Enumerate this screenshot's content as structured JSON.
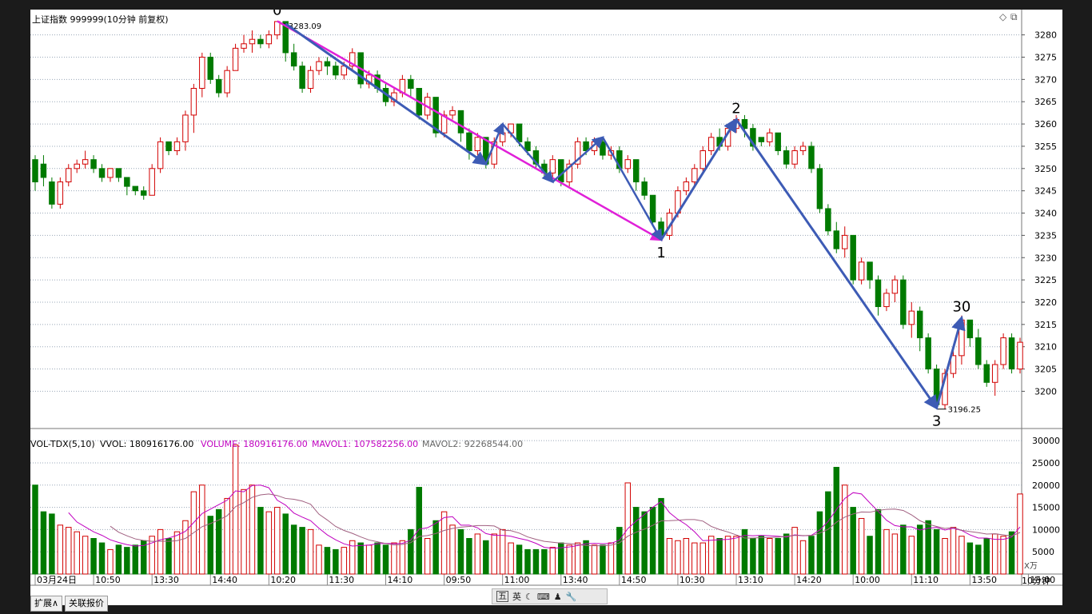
{
  "header": {
    "title": "上证指数 999999(10分钟 前复权)",
    "top_right_icons": [
      "diamond-icon",
      "window-restore-icon"
    ]
  },
  "volume_header": {
    "indicator": "VOL-TDX(5,10)",
    "vvol": "VVOL: 180916176.00",
    "volume": "VOLUME: 180916176.00",
    "mavol1": "MAVOL1: 107582256.00",
    "mavol2": "MAVOL2: 92268544.00"
  },
  "bottom_tabs": [
    "扩展∧",
    "关联报价"
  ],
  "toolbar": {
    "ime": "五",
    "lang": "英",
    "icons": [
      "moon-icon",
      "keyboard-icon",
      "user-icon",
      "wrench-icon"
    ]
  },
  "period_label": "10分钟",
  "colors": {
    "up": "#d20000",
    "down": "#007a00",
    "wave": "#3d5bb5",
    "trend": "#e020d8",
    "ma1": "#c000c0",
    "ma2": "#a06080",
    "grid": "#9aa8b8"
  },
  "chart_data": {
    "type": "candlestick",
    "price_axis": {
      "ticks": [
        3280,
        3275,
        3270,
        3265,
        3260,
        3255,
        3250,
        3245,
        3240,
        3235,
        3230,
        3225,
        3220,
        3215,
        3210,
        3205,
        3200
      ],
      "range": [
        3192.0,
        3284.6
      ]
    },
    "volume_axis": {
      "ticks": [
        30000,
        25000,
        20000,
        15000,
        10000,
        5000
      ],
      "unit": "X万",
      "range": [
        0,
        32000
      ]
    },
    "time_labels": [
      {
        "index": 0,
        "label": "03月24日"
      },
      {
        "index": 7,
        "label": "10:50"
      },
      {
        "index": 14,
        "label": "13:30"
      },
      {
        "index": 21,
        "label": "14:40"
      },
      {
        "index": 28,
        "label": "10:20"
      },
      {
        "index": 35,
        "label": "11:30"
      },
      {
        "index": 42,
        "label": "14:10"
      },
      {
        "index": 49,
        "label": "09:50"
      },
      {
        "index": 56,
        "label": "11:00"
      },
      {
        "index": 63,
        "label": "13:40"
      },
      {
        "index": 70,
        "label": "14:50"
      },
      {
        "index": 77,
        "label": "10:30"
      },
      {
        "index": 84,
        "label": "13:10"
      },
      {
        "index": 91,
        "label": "14:20"
      },
      {
        "index": 98,
        "label": "10:00"
      },
      {
        "index": 105,
        "label": "11:10"
      },
      {
        "index": 112,
        "label": "13:50"
      },
      {
        "index": 119,
        "label": "15:00"
      }
    ],
    "candles": [
      [
        3252,
        3247,
        3253,
        3245,
        20000
      ],
      [
        3251,
        3248,
        3253,
        3246,
        14000
      ],
      [
        3247,
        3242,
        3248,
        3241,
        13500
      ],
      [
        3242,
        3247,
        3248,
        3241,
        11000
      ],
      [
        3247,
        3250,
        3251,
        3246,
        10500
      ],
      [
        3250,
        3251,
        3252,
        3249,
        9500
      ],
      [
        3251,
        3252,
        3254,
        3250,
        8500
      ],
      [
        3252,
        3250,
        3253,
        3249,
        8000
      ],
      [
        3250,
        3248,
        3251,
        3247,
        7000
      ],
      [
        3248,
        3250,
        3250,
        3247,
        5500
      ],
      [
        3250,
        3248,
        3250,
        3247,
        6500
      ],
      [
        3248,
        3246,
        3248,
        3244,
        6000
      ],
      [
        3246,
        3245,
        3246,
        3244,
        6500
      ],
      [
        3245,
        3244,
        3246,
        3243,
        7500
      ],
      [
        3244,
        3250,
        3251,
        3244,
        8500
      ],
      [
        3250,
        3256,
        3257,
        3249,
        10000
      ],
      [
        3256,
        3254,
        3256,
        3253,
        8000
      ],
      [
        3254,
        3256,
        3257,
        3253,
        9500
      ],
      [
        3256,
        3262,
        3263,
        3254,
        12000
      ],
      [
        3262,
        3268,
        3269,
        3258,
        18500
      ],
      [
        3268,
        3275,
        3276,
        3266,
        20000
      ],
      [
        3275,
        3270,
        3276,
        3269,
        13000
      ],
      [
        3270,
        3267,
        3271,
        3266,
        14500
      ],
      [
        3267,
        3272,
        3273,
        3266,
        17000
      ],
      [
        3272,
        3277,
        3278,
        3272,
        29000
      ],
      [
        3277,
        3278,
        3280,
        3276,
        19000
      ],
      [
        3278,
        3279,
        3281,
        3276,
        20000
      ],
      [
        3279,
        3278,
        3280,
        3277,
        15000
      ],
      [
        3278,
        3280,
        3281,
        3277,
        14000
      ],
      [
        3280,
        3283,
        3283,
        3279,
        15000
      ],
      [
        3283,
        3276,
        3283,
        3274,
        13500
      ],
      [
        3276,
        3273,
        3278,
        3272,
        11000
      ],
      [
        3273,
        3268,
        3274,
        3267,
        10500
      ],
      [
        3268,
        3272,
        3273,
        3267,
        10000
      ],
      [
        3272,
        3274,
        3275,
        3271,
        6500
      ],
      [
        3274,
        3273,
        3275,
        3271,
        6000
      ],
      [
        3273,
        3271,
        3274,
        3270,
        5500
      ],
      [
        3271,
        3273,
        3274,
        3270,
        6000
      ],
      [
        3273,
        3276,
        3277,
        3272,
        7500
      ],
      [
        3276,
        3269,
        3276,
        3268,
        7000
      ],
      [
        3269,
        3271,
        3272,
        3268,
        6500
      ],
      [
        3271,
        3268,
        3272,
        3267,
        7000
      ],
      [
        3268,
        3265,
        3269,
        3264,
        6500
      ],
      [
        3265,
        3267,
        3268,
        3264,
        7000
      ],
      [
        3267,
        3270,
        3271,
        3266,
        7500
      ],
      [
        3270,
        3268,
        3271,
        3266,
        10000
      ],
      [
        3268,
        3262,
        3268,
        3261,
        19500
      ],
      [
        3262,
        3266,
        3267,
        3261,
        8000
      ],
      [
        3266,
        3258,
        3266,
        3257,
        12000
      ],
      [
        3258,
        3262,
        3263,
        3257,
        14000
      ],
      [
        3262,
        3263,
        3264,
        3261,
        11000
      ],
      [
        3263,
        3258,
        3263,
        3256,
        10000
      ],
      [
        3258,
        3254,
        3259,
        3252,
        8000
      ],
      [
        3254,
        3257,
        3258,
        3253,
        9000
      ],
      [
        3257,
        3251,
        3257,
        3250,
        7500
      ],
      [
        3251,
        3256,
        3257,
        3250,
        9000
      ],
      [
        3256,
        3258,
        3259,
        3255,
        10000
      ],
      [
        3258,
        3260,
        3260,
        3257,
        7000
      ],
      [
        3260,
        3256,
        3260,
        3255,
        6500
      ],
      [
        3256,
        3254,
        3257,
        3253,
        5500
      ],
      [
        3254,
        3251,
        3255,
        3250,
        5500
      ],
      [
        3251,
        3249,
        3252,
        3248,
        5500
      ],
      [
        3249,
        3252,
        3253,
        3248,
        6000
      ],
      [
        3252,
        3247,
        3252,
        3246,
        7000
      ],
      [
        3247,
        3251,
        3252,
        3246,
        6500
      ],
      [
        3251,
        3256,
        3257,
        3250,
        7000
      ],
      [
        3256,
        3254,
        3257,
        3253,
        7500
      ],
      [
        3254,
        3256,
        3257,
        3253,
        6500
      ],
      [
        3256,
        3253,
        3257,
        3252,
        6500
      ],
      [
        3253,
        3254,
        3255,
        3252,
        7000
      ],
      [
        3254,
        3250,
        3255,
        3249,
        10500
      ],
      [
        3250,
        3252,
        3253,
        3249,
        20500
      ],
      [
        3252,
        3247,
        3252,
        3245,
        15000
      ],
      [
        3247,
        3244,
        3248,
        3243,
        14000
      ],
      [
        3244,
        3238,
        3244,
        3237,
        15000
      ],
      [
        3238,
        3235,
        3239,
        3234,
        17000
      ],
      [
        3235,
        3240,
        3241,
        3234,
        8000
      ],
      [
        3240,
        3245,
        3246,
        3239,
        7500
      ],
      [
        3245,
        3247,
        3248,
        3244,
        8000
      ],
      [
        3247,
        3250,
        3251,
        3246,
        7000
      ],
      [
        3250,
        3254,
        3255,
        3249,
        7000
      ],
      [
        3254,
        3257,
        3258,
        3253,
        8500
      ],
      [
        3257,
        3255,
        3259,
        3254,
        8000
      ],
      [
        3255,
        3259,
        3260,
        3254,
        8500
      ],
      [
        3259,
        3261,
        3262,
        3258,
        8500
      ],
      [
        3261,
        3259,
        3262,
        3257,
        10000
      ],
      [
        3259,
        3255,
        3260,
        3254,
        8000
      ],
      [
        3257,
        3256,
        3257,
        3255,
        8500
      ],
      [
        3256,
        3258,
        3259,
        3255,
        8000
      ],
      [
        3258,
        3254,
        3258,
        3253,
        8000
      ],
      [
        3254,
        3251,
        3255,
        3250,
        9000
      ],
      [
        3251,
        3254,
        3255,
        3250,
        10500
      ],
      [
        3254,
        3255,
        3256,
        3253,
        7500
      ],
      [
        3255,
        3250,
        3256,
        3249,
        8500
      ],
      [
        3250,
        3241,
        3251,
        3240,
        14000
      ],
      [
        3241,
        3236,
        3242,
        3235,
        18500
      ],
      [
        3236,
        3232,
        3238,
        3231,
        24000
      ],
      [
        3232,
        3235,
        3237,
        3230,
        20000
      ],
      [
        3235,
        3225,
        3235,
        3224,
        15000
      ],
      [
        3225,
        3229,
        3230,
        3224,
        12500
      ],
      [
        3229,
        3225,
        3229,
        3223,
        8500
      ],
      [
        3225,
        3219,
        3226,
        3217,
        14500
      ],
      [
        3219,
        3222,
        3223,
        3218,
        10000
      ],
      [
        3222,
        3225,
        3226,
        3220,
        9000
      ],
      [
        3225,
        3215,
        3226,
        3214,
        11000
      ],
      [
        3215,
        3218,
        3220,
        3212,
        8500
      ],
      [
        3218,
        3212,
        3219,
        3209,
        11000
      ],
      [
        3212,
        3205,
        3213,
        3204,
        12000
      ],
      [
        3205,
        3197,
        3206,
        3196,
        10000
      ],
      [
        3197,
        3204,
        3205,
        3196,
        8000
      ],
      [
        3204,
        3208,
        3209,
        3203,
        10500
      ],
      [
        3208,
        3216,
        3217,
        3206,
        8500
      ],
      [
        3216,
        3212,
        3216,
        3210,
        7000
      ],
      [
        3212,
        3206,
        3214,
        3205,
        6500
      ],
      [
        3206,
        3202,
        3207,
        3201,
        8000
      ],
      [
        3202,
        3206,
        3207,
        3199,
        9000
      ],
      [
        3206,
        3212,
        3213,
        3205,
        8500
      ],
      [
        3212,
        3205,
        3213,
        3204,
        9500
      ],
      [
        3205,
        3211,
        3212,
        3204,
        18000
      ]
    ],
    "peak_label": {
      "index": 29,
      "text": "3283.09"
    },
    "trough_label": {
      "index": 108,
      "text": "3196.25"
    },
    "wave_labels": [
      {
        "index": 29,
        "price": 3283.09,
        "text": "0",
        "pos": "above"
      },
      {
        "index": 75,
        "price": 3234.0,
        "text": "1",
        "pos": "below"
      },
      {
        "index": 84,
        "price": 3261.0,
        "text": "2",
        "pos": "above"
      },
      {
        "index": 108,
        "price": 3196.25,
        "text": "3",
        "pos": "below"
      },
      {
        "index": 111,
        "price": 3216.5,
        "text": "30",
        "pos": "above"
      }
    ],
    "arrows": [
      {
        "from": [
          29,
          3283.09
        ],
        "to": [
          75,
          3234.0
        ],
        "color": "trend",
        "width": 2.5
      },
      {
        "from": [
          30,
          3282.5
        ],
        "to": [
          54,
          3251.0
        ],
        "color": "wave",
        "width": 3
      },
      {
        "from": [
          54,
          3251.0
        ],
        "to": [
          56,
          3260.0
        ],
        "color": "wave",
        "width": 2.5
      },
      {
        "from": [
          56,
          3260.0
        ],
        "to": [
          62,
          3247.0
        ],
        "color": "wave",
        "width": 2.5
      },
      {
        "from": [
          62,
          3247.0
        ],
        "to": [
          68,
          3257.0
        ],
        "color": "wave",
        "width": 2.5
      },
      {
        "from": [
          68,
          3257.0
        ],
        "to": [
          75,
          3234.0
        ],
        "color": "wave",
        "width": 2.5
      },
      {
        "from": [
          75,
          3234.0
        ],
        "to": [
          84,
          3261.0
        ],
        "color": "wave",
        "width": 3
      },
      {
        "from": [
          84,
          3261.0
        ],
        "to": [
          108,
          3196.25
        ],
        "color": "wave",
        "width": 3
      },
      {
        "from": [
          108,
          3196.25
        ],
        "to": [
          111,
          3216.5
        ],
        "color": "wave",
        "width": 3
      }
    ]
  }
}
